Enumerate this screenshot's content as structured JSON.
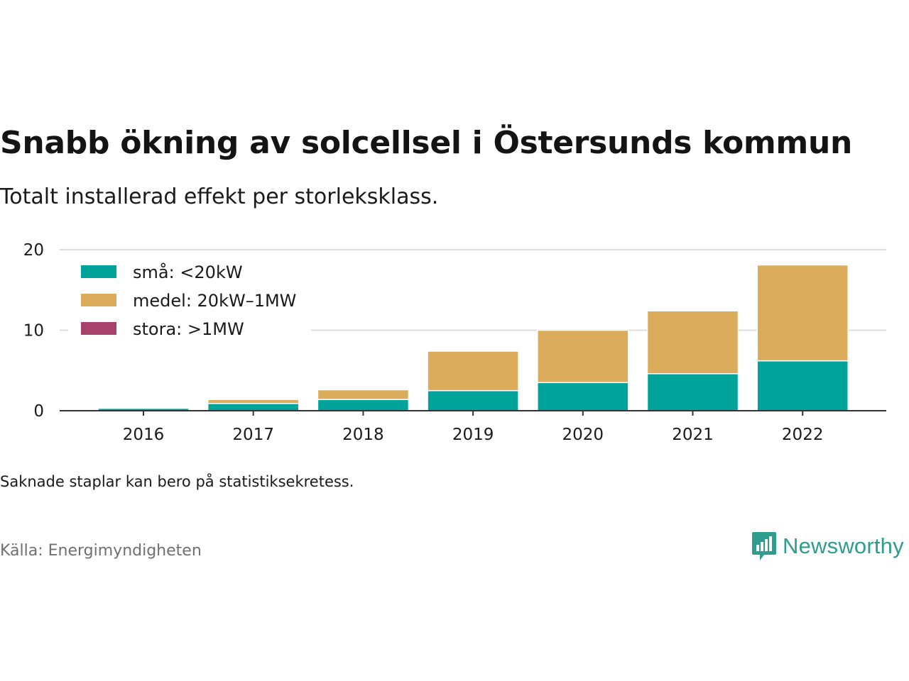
{
  "title": "Snabb ökning av solcellsel i Östersunds kommun",
  "subtitle": "Totalt installerad effekt per storleksklass.",
  "note": "Saknade staplar kan bero på statistiksekretess.",
  "source": "Källa: Energimyndigheten",
  "brand": {
    "name": "Newsworthy",
    "icon": "newsworthy-logo-icon",
    "color": "#2e9c8f"
  },
  "chart_data": {
    "type": "bar",
    "stacked": true,
    "categories": [
      "2016",
      "2017",
      "2018",
      "2019",
      "2020",
      "2021",
      "2022"
    ],
    "series": [
      {
        "name": "små: <20kW",
        "color": "#00a39a",
        "values": [
          0.3,
          0.9,
          1.4,
          2.5,
          3.5,
          4.6,
          6.2
        ]
      },
      {
        "name": "medel: 20kW–1MW",
        "color": "#dbac5b",
        "values": [
          0.0,
          0.5,
          1.2,
          4.9,
          6.5,
          7.8,
          11.9
        ]
      },
      {
        "name": "stora: >1MW",
        "color": "#a8416b",
        "values": [
          0,
          0,
          0,
          0,
          0,
          0,
          0
        ]
      }
    ],
    "ylim": [
      0,
      20
    ],
    "yticks": [
      0,
      10,
      20
    ],
    "grid": true,
    "legend": "top-left"
  }
}
